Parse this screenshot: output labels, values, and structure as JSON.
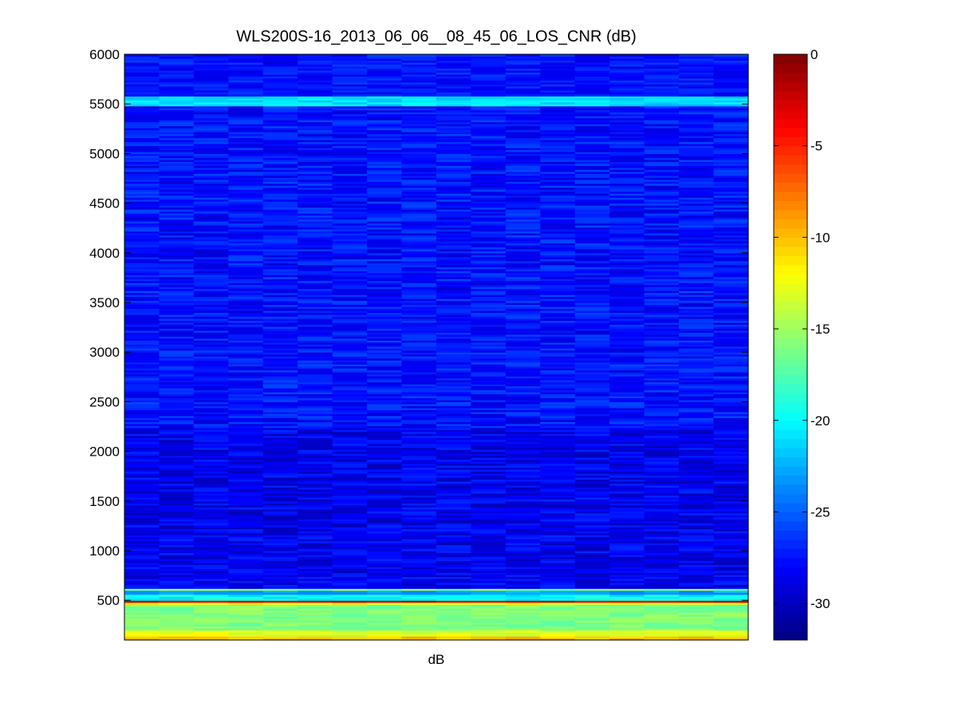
{
  "chart_data": {
    "type": "heatmap",
    "title": "WLS200S-16_2013_06_06__08_45_06_LOS_CNR (dB)",
    "xlabel": "dB",
    "ylabel": "",
    "ylim": [
      100,
      6000
    ],
    "y_ticks": [
      500,
      1000,
      1500,
      2000,
      2500,
      3000,
      3500,
      4000,
      4500,
      5000,
      5500,
      6000
    ],
    "y_tick_labels": [
      "500",
      "1000",
      "1500",
      "2000",
      "2500",
      "3000",
      "3500",
      "4000",
      "4500",
      "5000",
      "5500",
      "6000"
    ],
    "columns": 18,
    "colormap": "jet",
    "colorbar": {
      "range": [
        -32,
        0
      ],
      "ticks": [
        0,
        -5,
        -10,
        -15,
        -20,
        -25,
        -30
      ],
      "tick_labels": [
        "0",
        "-5",
        "-10",
        "-15",
        "-20",
        "-25",
        "-30"
      ]
    },
    "value_bands": [
      {
        "from": 100,
        "to": 150,
        "value": -10
      },
      {
        "from": 150,
        "to": 200,
        "value": -13
      },
      {
        "from": 200,
        "to": 460,
        "value": -16
      },
      {
        "from": 460,
        "to": 490,
        "value": -12
      },
      {
        "from": 490,
        "to": 510,
        "value": -3
      },
      {
        "from": 510,
        "to": 560,
        "value": -20
      },
      {
        "from": 560,
        "to": 600,
        "value": -23
      },
      {
        "from": 600,
        "to": 620,
        "value": -16
      },
      {
        "from": 620,
        "to": 2250,
        "value": -28.5
      },
      {
        "from": 2250,
        "to": 5490,
        "value": -27.5
      },
      {
        "from": 5490,
        "to": 5590,
        "value": -21
      },
      {
        "from": 5590,
        "to": 6000,
        "value": -27.5
      }
    ]
  }
}
